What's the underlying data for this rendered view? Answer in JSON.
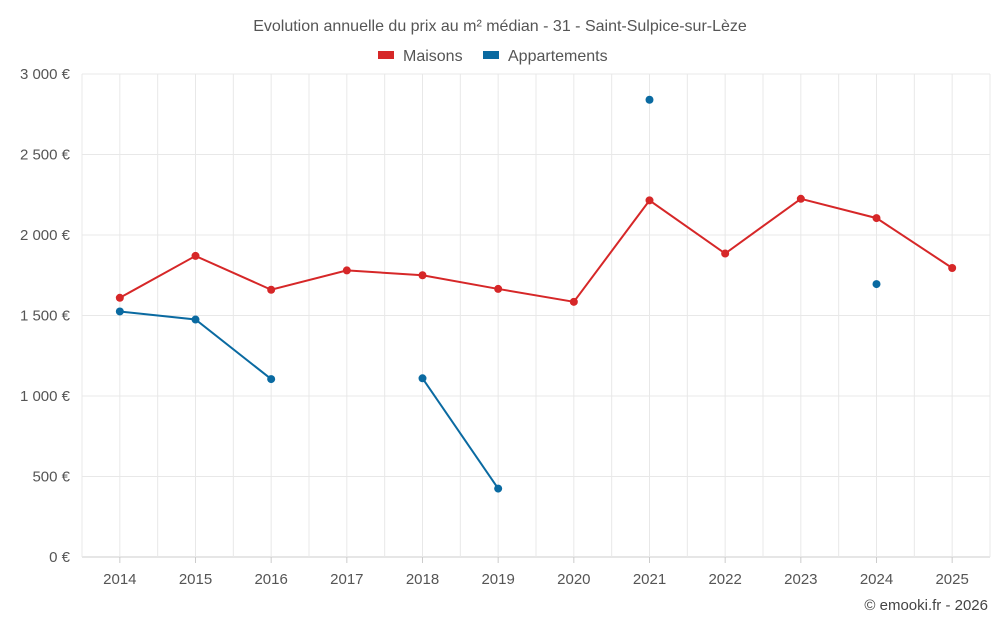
{
  "chart_data": {
    "type": "line",
    "title": "Evolution annuelle du prix au m² médian - 31 - Saint-Sulpice-sur-Lèze",
    "categories": [
      "2014",
      "2015",
      "2016",
      "2017",
      "2018",
      "2019",
      "2020",
      "2021",
      "2022",
      "2023",
      "2024",
      "2025"
    ],
    "ylim": [
      0,
      3000
    ],
    "y_ticks": [
      0,
      500,
      1000,
      1500,
      2000,
      2500,
      3000
    ],
    "y_tick_labels": [
      "0 €",
      "500 €",
      "1 000 €",
      "1 500 €",
      "2 000 €",
      "2 500 €",
      "3 000 €"
    ],
    "xlabel": "",
    "ylabel": "",
    "grid": true,
    "legend_position": "top-center",
    "series": [
      {
        "name": "Maisons",
        "color": "#d62728",
        "values": [
          1610,
          1870,
          1660,
          1780,
          1750,
          1665,
          1585,
          2215,
          1885,
          2225,
          2105,
          1795
        ]
      },
      {
        "name": "Appartements",
        "color": "#0a6aa1",
        "values": [
          1525,
          1475,
          1105,
          null,
          1110,
          425,
          null,
          2840,
          null,
          null,
          1695,
          null
        ]
      }
    ],
    "credit": "© emooki.fr - 2026"
  }
}
